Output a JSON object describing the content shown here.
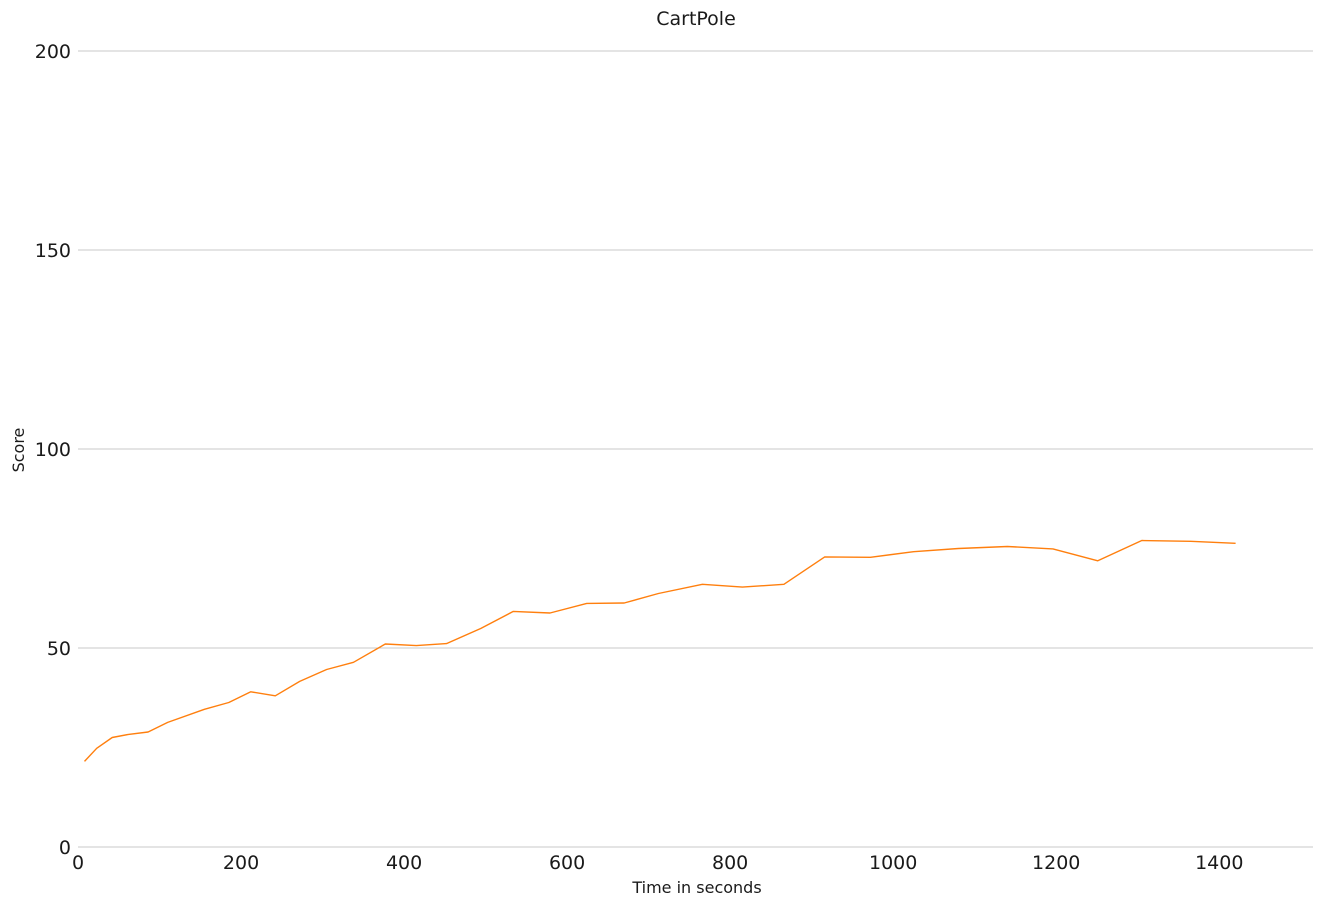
{
  "chart_data": {
    "type": "line",
    "title": "CartPole",
    "xlabel": "Time in seconds",
    "ylabel": "Score",
    "xlim": [
      0,
      1515
    ],
    "ylim": [
      0,
      200
    ],
    "x_ticks": [
      "0",
      "200",
      "400",
      "600",
      "800",
      "1000",
      "1200",
      "1400"
    ],
    "y_ticks": [
      "0",
      "50",
      "100",
      "150",
      "200"
    ],
    "grid": "horizontal",
    "line_color": "#ff7f0e",
    "grid_color": "#c8c8c8",
    "series": [
      {
        "x": [
          8,
          23,
          42,
          62,
          86,
          110,
          155,
          185,
          212,
          242,
          272,
          305,
          338,
          377,
          415,
          452,
          494,
          534,
          579,
          624,
          670,
          712,
          766,
          815,
          866,
          916,
          972,
          1025,
          1080,
          1140,
          1196,
          1251,
          1305,
          1365,
          1420
        ],
        "y": [
          21.5,
          24.8,
          27.5,
          28.3,
          28.9,
          31.3,
          34.6,
          36.3,
          39.0,
          38.0,
          41.6,
          44.6,
          46.4,
          51.0,
          50.6,
          51.1,
          54.9,
          59.2,
          58.8,
          61.2,
          61.3,
          63.7,
          66.0,
          65.3,
          66.0,
          72.9,
          72.8,
          74.2,
          75.0,
          75.5,
          74.9,
          71.9,
          77.0,
          76.8,
          76.3
        ]
      }
    ]
  }
}
